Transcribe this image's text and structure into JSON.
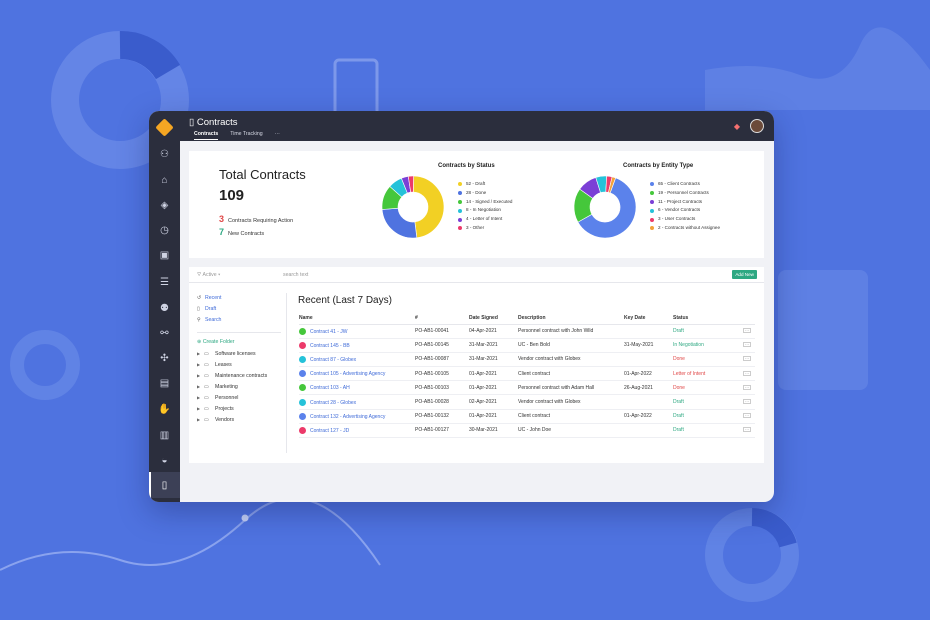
{
  "app": {
    "title": "Contracts"
  },
  "tabs": [
    "Contracts",
    "Time Tracking",
    "···"
  ],
  "summary": {
    "title": "Total Contracts",
    "total": "109",
    "action_count": "3",
    "action_label": "Contracts Requiring Action",
    "new_count": "7",
    "new_label": "New Contracts"
  },
  "chart_data": [
    {
      "type": "pie",
      "title": "Contracts by Status",
      "labels": [
        "52 - Draft",
        "28 - Done",
        "14 - Signed / Executed",
        "8 - In Negotiation",
        "4 - Letter of Intent",
        "3 - Other"
      ],
      "values": [
        52,
        28,
        14,
        8,
        4,
        3
      ],
      "colors": [
        "#f2d024",
        "#4f73e0",
        "#45c73b",
        "#25c2d9",
        "#7b3fd6",
        "#ec3a6a"
      ]
    },
    {
      "type": "pie",
      "title": "Contracts by Entity Type",
      "labels": [
        "65 - Client Contracts",
        "19 - Personnel Contracts",
        "11 - Project Contracts",
        "6 - Vendor Contracts",
        "3 - User Contracts",
        "2 - Contracts without Assignee"
      ],
      "values": [
        65,
        19,
        11,
        6,
        3,
        2
      ],
      "colors": [
        "#5b82eb",
        "#45c73b",
        "#7b3fd6",
        "#25c2d9",
        "#ec3a6a",
        "#f2a13a"
      ]
    }
  ],
  "filter": {
    "label": "Active",
    "search_placeholder": "search text",
    "add_label": "Add New"
  },
  "nav": {
    "recent": "Recent",
    "draft": "Draft",
    "search": "Search",
    "create": "Create Folder"
  },
  "folders": [
    "Software licenses",
    "Leases",
    "Maintenance contracts",
    "Marketing",
    "Personnel",
    "Projects",
    "Vendors"
  ],
  "recent": {
    "heading": "Recent (Last 7 Days)",
    "columns": [
      "Name",
      "#",
      "Date Signed",
      "Description",
      "Key Date",
      "Status"
    ],
    "rows": [
      {
        "name": "Contract 41 - JW",
        "num": "PO-AB1-00041",
        "signed": "04-Apr-2021",
        "desc": "Personnel contract with John Wild",
        "key": "",
        "status": "Draft",
        "status_color": "#2ea882",
        "av": "#45c73b"
      },
      {
        "name": "Contract 145 - BB",
        "num": "PO-AB1-00145",
        "signed": "31-Mar-2021",
        "desc": "UC - Ben Bold",
        "key": "31-May-2021",
        "status": "In Negotiation",
        "status_color": "#2ea882",
        "av": "#ec3a6a"
      },
      {
        "name": "Contract 87 - Globex",
        "num": "PO-AB1-00087",
        "signed": "31-Mar-2021",
        "desc": "Vendor contract with Globex",
        "key": "",
        "status": "Done",
        "status_color": "#e04848",
        "av": "#25c2d9"
      },
      {
        "name": "Contract 105 - Advertising Agency",
        "num": "PO-AB1-00105",
        "signed": "01-Apr-2021",
        "desc": "Client contract",
        "key": "01-Apr-2022",
        "status": "Letter of Intent",
        "status_color": "#e04848",
        "av": "#5b82eb"
      },
      {
        "name": "Contract 103 - AH",
        "num": "PO-AB1-00103",
        "signed": "01-Apr-2021",
        "desc": "Personnel contract with Adam Hall",
        "key": "26-Aug-2021",
        "status": "Done",
        "status_color": "#e04848",
        "av": "#45c73b"
      },
      {
        "name": "Contract 28 - Globex",
        "num": "PO-AB1-00028",
        "signed": "02-Apr-2021",
        "desc": "Vendor contract with Globex",
        "key": "",
        "status": "Draft",
        "status_color": "#2ea882",
        "av": "#25c2d9"
      },
      {
        "name": "Contract 132 - Advertising Agency",
        "num": "PO-AB1-00132",
        "signed": "01-Apr-2021",
        "desc": "Client contract",
        "key": "01-Apr-2022",
        "status": "Draft",
        "status_color": "#2ea882",
        "av": "#5b82eb"
      },
      {
        "name": "Contract 127 - JD",
        "num": "PO-AB1-00127",
        "signed": "30-Mar-2021",
        "desc": "UC - John Doe",
        "key": "",
        "status": "Draft",
        "status_color": "#2ea882",
        "av": "#ec3a6a"
      }
    ]
  }
}
